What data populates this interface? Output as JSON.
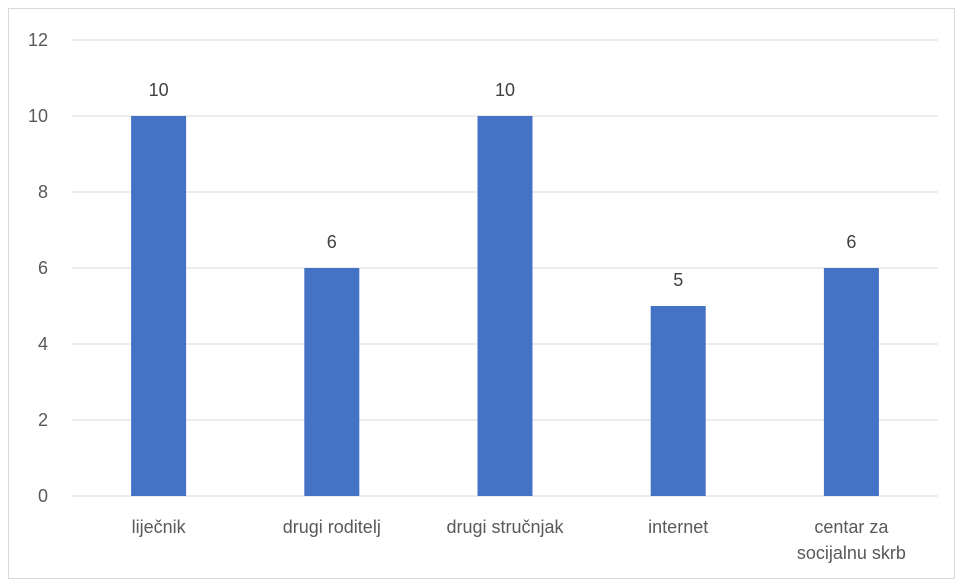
{
  "chart_data": {
    "type": "bar",
    "title": "",
    "xlabel": "",
    "ylabel": "",
    "categories": [
      [
        "liječnik"
      ],
      [
        "drugi roditelj"
      ],
      [
        "drugi stručnjak"
      ],
      [
        "internet"
      ],
      [
        "centar za",
        "socijalnu skrb"
      ]
    ],
    "values": [
      10,
      6,
      10,
      5,
      6
    ],
    "ylim": [
      0,
      12
    ],
    "yticks": [
      0,
      2,
      4,
      6,
      8,
      10,
      12
    ],
    "grid": true,
    "legend": "none",
    "bar_color": "#4472C4",
    "grid_color": "#D9D9D9"
  }
}
